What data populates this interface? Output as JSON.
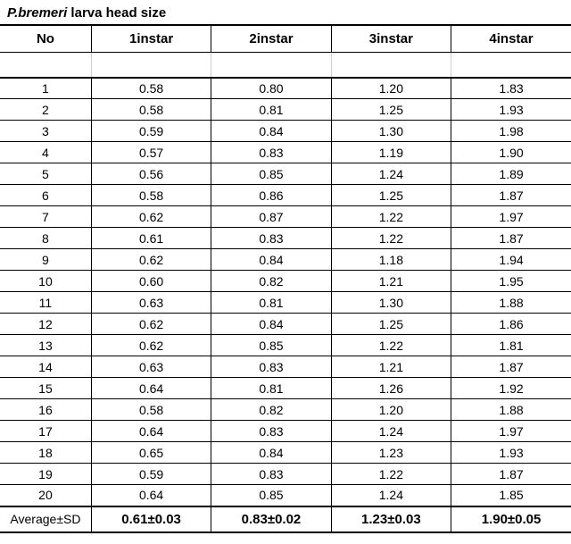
{
  "title": {
    "species": "P.bremeri",
    "rest": " larva head size"
  },
  "table": {
    "type": "table",
    "background_color": "#ffffff",
    "border_color": "#000000",
    "header_fontsize": 15,
    "cell_fontsize": 14,
    "columns": [
      "No",
      "1instar",
      "2instar",
      "3instar",
      "4instar"
    ],
    "col_widths_pct": [
      16,
      21,
      21,
      21,
      21
    ],
    "rows": [
      [
        "1",
        "0.58",
        "0.80",
        "1.20",
        "1.83"
      ],
      [
        "2",
        "0.58",
        "0.81",
        "1.25",
        "1.93"
      ],
      [
        "3",
        "0.59",
        "0.84",
        "1.30",
        "1.98"
      ],
      [
        "4",
        "0.57",
        "0.83",
        "1.19",
        "1.90"
      ],
      [
        "5",
        "0.56",
        "0.85",
        "1.24",
        "1.89"
      ],
      [
        "6",
        "0.58",
        "0.86",
        "1.25",
        "1.87"
      ],
      [
        "7",
        "0.62",
        "0.87",
        "1.22",
        "1.97"
      ],
      [
        "8",
        "0.61",
        "0.83",
        "1.22",
        "1.87"
      ],
      [
        "9",
        "0.62",
        "0.84",
        "1.18",
        "1.94"
      ],
      [
        "10",
        "0.60",
        "0.82",
        "1.21",
        "1.95"
      ],
      [
        "11",
        "0.63",
        "0.81",
        "1.30",
        "1.88"
      ],
      [
        "12",
        "0.62",
        "0.84",
        "1.25",
        "1.86"
      ],
      [
        "13",
        "0.62",
        "0.85",
        "1.22",
        "1.81"
      ],
      [
        "14",
        "0.63",
        "0.83",
        "1.21",
        "1.87"
      ],
      [
        "15",
        "0.64",
        "0.81",
        "1.26",
        "1.92"
      ],
      [
        "16",
        "0.58",
        "0.82",
        "1.20",
        "1.88"
      ],
      [
        "17",
        "0.64",
        "0.83",
        "1.24",
        "1.97"
      ],
      [
        "18",
        "0.65",
        "0.84",
        "1.23",
        "1.93"
      ],
      [
        "19",
        "0.59",
        "0.83",
        "1.22",
        "1.87"
      ],
      [
        "20",
        "0.64",
        "0.85",
        "1.24",
        "1.85"
      ]
    ],
    "summary": {
      "label": "Average±SD",
      "values": [
        "0.61±0.03",
        "0.83±0.02",
        "1.23±0.03",
        "1.90±0.05"
      ]
    }
  }
}
